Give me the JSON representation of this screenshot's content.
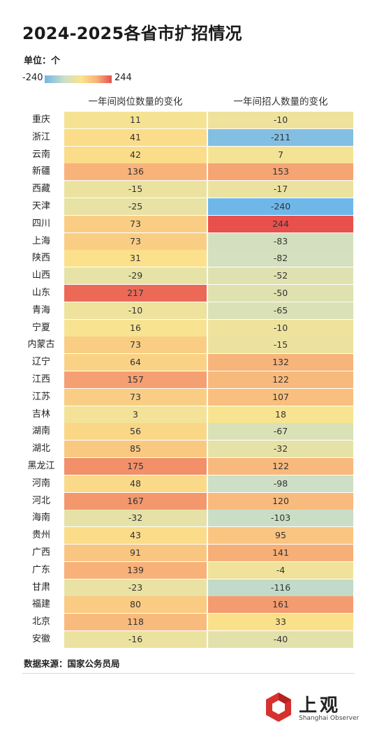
{
  "title": "2024-2025各省市扩招情况",
  "unit_label": "单位：个",
  "colors": {
    "scale_min": "#6fb7e9",
    "scale_mid_low": "#cfe0c4",
    "scale_mid": "#fbe38c",
    "scale_mid_high": "#f7b27a",
    "scale_max": "#e8504c"
  },
  "chart_data": {
    "type": "heatmap",
    "legend": {
      "min": -240,
      "max": 244,
      "min_label": "-240",
      "max_label": "244"
    },
    "columns": [
      "一年间岗位数量的变化",
      "一年间招人数量的变化"
    ],
    "rows": [
      {
        "province": "重庆",
        "jobs": 11,
        "hires": -10
      },
      {
        "province": "浙江",
        "jobs": 41,
        "hires": -211
      },
      {
        "province": "云南",
        "jobs": 42,
        "hires": 7
      },
      {
        "province": "新疆",
        "jobs": 136,
        "hires": 153
      },
      {
        "province": "西藏",
        "jobs": -15,
        "hires": -17
      },
      {
        "province": "天津",
        "jobs": -25,
        "hires": -240
      },
      {
        "province": "四川",
        "jobs": 73,
        "hires": 244
      },
      {
        "province": "上海",
        "jobs": 73,
        "hires": -83
      },
      {
        "province": "陕西",
        "jobs": 31,
        "hires": -82
      },
      {
        "province": "山西",
        "jobs": -29,
        "hires": -52
      },
      {
        "province": "山东",
        "jobs": 217,
        "hires": -50
      },
      {
        "province": "青海",
        "jobs": -10,
        "hires": -65
      },
      {
        "province": "宁夏",
        "jobs": 16,
        "hires": -10
      },
      {
        "province": "内蒙古",
        "jobs": 73,
        "hires": -15
      },
      {
        "province": "辽宁",
        "jobs": 64,
        "hires": 132
      },
      {
        "province": "江西",
        "jobs": 157,
        "hires": 122
      },
      {
        "province": "江苏",
        "jobs": 73,
        "hires": 107
      },
      {
        "province": "吉林",
        "jobs": 3,
        "hires": 18
      },
      {
        "province": "湖南",
        "jobs": 56,
        "hires": -67
      },
      {
        "province": "湖北",
        "jobs": 85,
        "hires": -32
      },
      {
        "province": "黑龙江",
        "jobs": 175,
        "hires": 122
      },
      {
        "province": "河南",
        "jobs": 48,
        "hires": -98
      },
      {
        "province": "河北",
        "jobs": 167,
        "hires": 120
      },
      {
        "province": "海南",
        "jobs": -32,
        "hires": -103
      },
      {
        "province": "贵州",
        "jobs": 43,
        "hires": 95
      },
      {
        "province": "广西",
        "jobs": 91,
        "hires": 141
      },
      {
        "province": "广东",
        "jobs": 139,
        "hires": -4
      },
      {
        "province": "甘肃",
        "jobs": -23,
        "hires": -116
      },
      {
        "province": "福建",
        "jobs": 80,
        "hires": 161
      },
      {
        "province": "北京",
        "jobs": 118,
        "hires": 33
      },
      {
        "province": "安徽",
        "jobs": -16,
        "hires": -40
      }
    ]
  },
  "source": "数据来源：国家公务员局",
  "logo": {
    "name_cn": "上观",
    "name_en": "Shanghai Observer",
    "icon": "shanghai-observer-logo-icon",
    "color": "#d7312e"
  }
}
